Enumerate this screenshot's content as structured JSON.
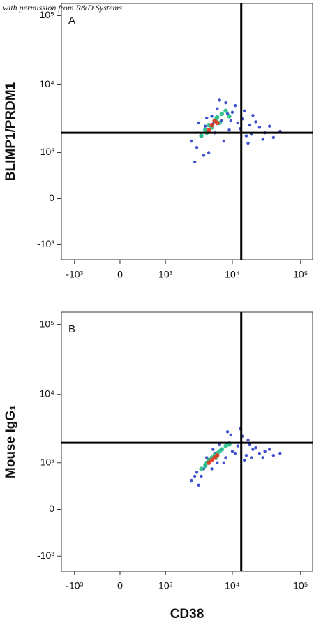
{
  "credit": "with permission from R&D Systems",
  "chart_data": [
    {
      "type": "scatter",
      "panel": "A",
      "ylabel": "BLIMP1/PRDM1",
      "xscale": "biexponential",
      "yscale": "biexponential",
      "xlim": [
        -1600,
        150000
      ],
      "ylim": [
        -1700,
        150000
      ],
      "xticks": [
        {
          "value": -1000,
          "label": "-10³"
        },
        0,
        {
          "value": 1000,
          "label": "10³"
        },
        {
          "value": 10000,
          "label": "10⁴"
        },
        {
          "value": 100000,
          "label": "10⁵"
        }
      ],
      "yticks": [
        {
          "value": -1000,
          "label": "-10³"
        },
        0,
        {
          "value": 1000,
          "label": "10³"
        },
        {
          "value": 10000,
          "label": "10⁴"
        },
        {
          "value": 100000,
          "label": "10⁵"
        }
      ],
      "gate_x": 13500,
      "gate_y": 2000,
      "series": [
        {
          "color": "#2a3fc8",
          "x": [
            2500,
            3000,
            3500,
            4000,
            4500,
            5000,
            5500,
            6000,
            7000,
            8000,
            9000,
            10000,
            12000,
            14000,
            16000,
            18000,
            20000,
            25000,
            30000,
            40000,
            3200,
            3800,
            4200,
            6500,
            7500,
            9500,
            11000,
            13000,
            15000,
            17000,
            22000,
            28000,
            35000,
            50000,
            2800,
            5200,
            8500,
            19000
          ],
          "y": [
            1500,
            1200,
            1800,
            2500,
            1000,
            3500,
            2000,
            4500,
            3000,
            5500,
            2200,
            4000,
            2800,
            3200,
            1800,
            2600,
            3600,
            2400,
            2000,
            1700,
            2800,
            900,
            3300,
            6000,
            1500,
            3000,
            5000,
            2300,
            4200,
            1400,
            2900,
            1600,
            2500,
            2100,
            700,
            2700,
            3800,
            1900
          ]
        },
        {
          "color": "#27c08a",
          "x": [
            3500,
            4000,
            4500,
            5000,
            5500,
            6000,
            6500,
            7000,
            8000,
            9000,
            4200,
            5800
          ],
          "y": [
            1800,
            2200,
            2600,
            2400,
            3000,
            3400,
            2800,
            3800,
            4200,
            3500,
            2000,
            3200
          ]
        },
        {
          "color": "#e8341c",
          "x": [
            4500,
            5000,
            5500,
            6000
          ],
          "y": [
            2200,
            2600,
            3000,
            2800
          ]
        }
      ]
    },
    {
      "type": "scatter",
      "panel": "B",
      "ylabel": "Mouse IgG₁",
      "xlabel": "CD38",
      "xscale": "biexponential",
      "yscale": "biexponential",
      "xlim": [
        -1600,
        150000
      ],
      "ylim": [
        -1700,
        150000
      ],
      "xticks": [
        {
          "value": -1000,
          "label": "-10³"
        },
        0,
        {
          "value": 1000,
          "label": "10³"
        },
        {
          "value": 10000,
          "label": "10⁴"
        },
        {
          "value": 100000,
          "label": "10⁵"
        }
      ],
      "yticks": [
        {
          "value": -1000,
          "label": "-10³"
        },
        0,
        {
          "value": 1000,
          "label": "10³"
        },
        {
          "value": 10000,
          "label": "10⁴"
        },
        {
          "value": 100000,
          "label": "10⁵"
        }
      ],
      "gate_x": 13500,
      "gate_y": 2000,
      "series": [
        {
          "color": "#2a3fc8",
          "x": [
            2500,
            3000,
            3500,
            4000,
            4500,
            5000,
            5500,
            6000,
            7000,
            8000,
            9000,
            10000,
            12000,
            14000,
            16000,
            18000,
            20000,
            25000,
            30000,
            40000,
            3200,
            3800,
            4200,
            6500,
            7500,
            9500,
            11000,
            13000,
            15000,
            17000,
            22000,
            28000,
            35000,
            50000,
            2800,
            5200,
            8500,
            19000
          ],
          "y": [
            500,
            700,
            600,
            900,
            1100,
            800,
            1400,
            1000,
            1600,
            1200,
            2000,
            1500,
            1800,
            2500,
            1300,
            1900,
            1600,
            1400,
            1500,
            1300,
            400,
            800,
            1200,
            1900,
            1000,
            2600,
            1400,
            3200,
            1100,
            2200,
            1700,
            1200,
            1600,
            1400,
            600,
            1600,
            2900,
            1200
          ]
        },
        {
          "color": "#27c08a",
          "x": [
            3500,
            4000,
            4500,
            5000,
            5500,
            6000,
            6500,
            7000,
            8000,
            9000,
            4200,
            5800
          ],
          "y": [
            800,
            900,
            1100,
            1200,
            1300,
            1400,
            1500,
            1600,
            1800,
            1900,
            1000,
            1200
          ]
        },
        {
          "color": "#e8341c",
          "x": [
            4500,
            5000,
            5500,
            6000
          ],
          "y": [
            1000,
            1100,
            1200,
            1300
          ]
        }
      ]
    }
  ]
}
